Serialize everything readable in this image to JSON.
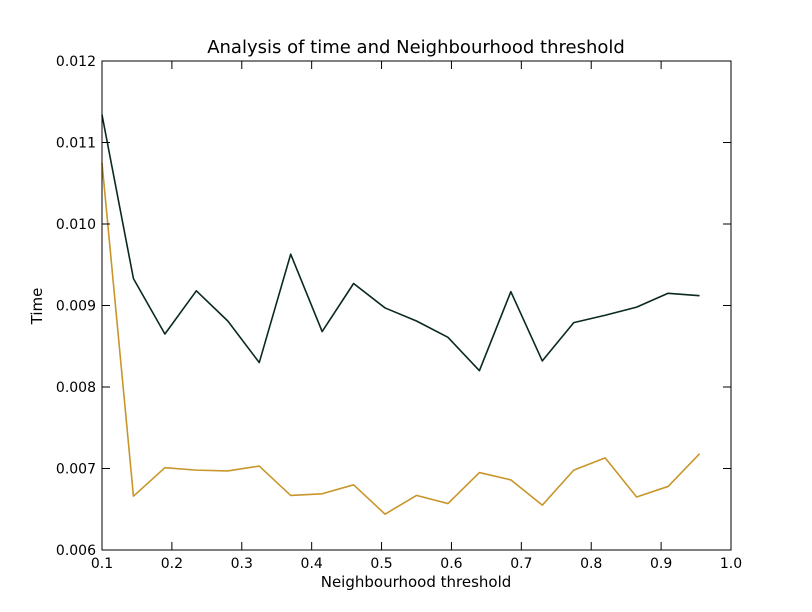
{
  "chart_data": {
    "type": "line",
    "title": "Analysis of time and Neighbourhood threshold",
    "xlabel": "Neighbourhood threshold",
    "ylabel": "Time",
    "xlim": [
      0.1,
      1.0
    ],
    "ylim": [
      0.006,
      0.012
    ],
    "xticks": [
      "0.1",
      "0.2",
      "0.3",
      "0.4",
      "0.5",
      "0.6",
      "0.7",
      "0.8",
      "0.9",
      "1.0"
    ],
    "yticks": [
      "0.006",
      "0.007",
      "0.008",
      "0.009",
      "0.010",
      "0.011",
      "0.012"
    ],
    "grid": false,
    "x": [
      0.1,
      0.145,
      0.19,
      0.235,
      0.28,
      0.325,
      0.37,
      0.415,
      0.46,
      0.505,
      0.55,
      0.595,
      0.64,
      0.685,
      0.73,
      0.775,
      0.82,
      0.865,
      0.91,
      0.955
    ],
    "series": [
      {
        "color": "#0a2a1e",
        "values": [
          0.01134,
          0.00933,
          0.00865,
          0.00918,
          0.00881,
          0.0083,
          0.00963,
          0.00868,
          0.00927,
          0.00897,
          0.00881,
          0.00861,
          0.0082,
          0.00917,
          0.00832,
          0.00879,
          0.00888,
          0.00898,
          0.00915,
          0.00912
        ]
      },
      {
        "color": "#c8962a",
        "values": [
          0.01075,
          0.00666,
          0.00701,
          0.00698,
          0.00697,
          0.00703,
          0.00667,
          0.00669,
          0.0068,
          0.00644,
          0.00667,
          0.00657,
          0.00695,
          0.00686,
          0.00655,
          0.00698,
          0.00713,
          0.00665,
          0.00678,
          0.00718
        ]
      }
    ]
  }
}
